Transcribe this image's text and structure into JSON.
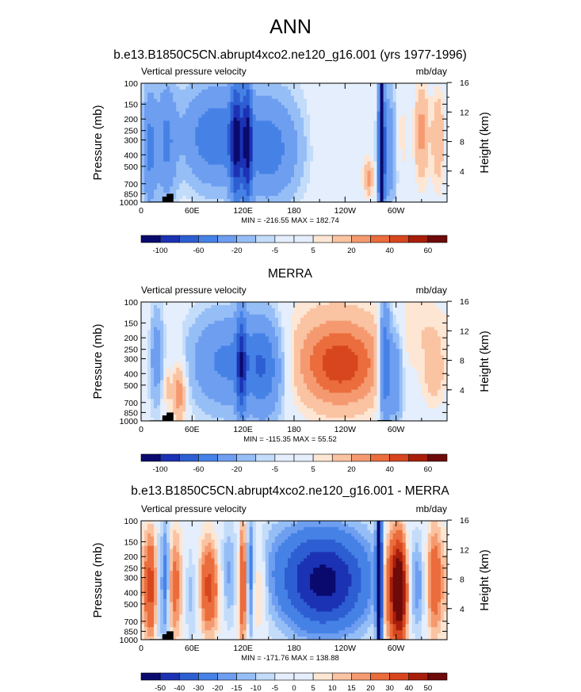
{
  "main_title": "ANN",
  "colors": {
    "palette_13": [
      "#0a0a6e",
      "#1c32b4",
      "#2d5ed2",
      "#4682e6",
      "#6e9ef0",
      "#96bef6",
      "#c3dcfa",
      "#e4eefc",
      "#fde6d4",
      "#fac3a2",
      "#f59a70",
      "#eb6c3c",
      "#d7461e",
      "#a81e0a",
      "#6e0a0a"
    ],
    "land": "#000000"
  },
  "chart_data": [
    {
      "id": "p1",
      "type": "heatmap",
      "title": "b.e13.B1850C5CN.abrupt4xco2.ne120_g16.001 (yrs 1977-1996)",
      "left_label": "Vertical pressure velocity",
      "units": "mb/day",
      "ylabel": "Pressure (mb)",
      "y2label": "Height (km)",
      "yticks": [
        "100",
        "150",
        "200",
        "250",
        "300",
        "400",
        "500",
        "700",
        "850",
        "1000"
      ],
      "y2ticks": [
        "16",
        "12",
        "8",
        "4"
      ],
      "xticks": [
        "0",
        "60E",
        "120E",
        "180",
        "120W",
        "60W"
      ],
      "stats": "MIN = -216.55  MAX = 182.74",
      "colorbar_labels": [
        "-100",
        "-60",
        "-20",
        "-5",
        "5",
        "20",
        "40",
        "60"
      ],
      "colorbar_levels": [
        -120,
        -100,
        -80,
        -60,
        -40,
        -20,
        -10,
        -5,
        0,
        5,
        10,
        20,
        30,
        40,
        50,
        60,
        70
      ]
    },
    {
      "id": "p2",
      "type": "heatmap",
      "title": "MERRA",
      "left_label": "Vertical pressure velocity",
      "units": "mb/day",
      "ylabel": "Pressure (mb)",
      "y2label": "Height (km)",
      "yticks": [
        "100",
        "150",
        "200",
        "250",
        "300",
        "400",
        "500",
        "700",
        "850",
        "1000"
      ],
      "y2ticks": [
        "16",
        "12",
        "8",
        "4"
      ],
      "xticks": [
        "0",
        "60E",
        "120E",
        "180",
        "120W",
        "60W"
      ],
      "stats": "MIN = -115.35  MAX =  55.52",
      "colorbar_labels": [
        "-100",
        "-60",
        "-20",
        "-5",
        "5",
        "20",
        "40",
        "60"
      ],
      "colorbar_levels": [
        -120,
        -100,
        -80,
        -60,
        -40,
        -20,
        -10,
        -5,
        0,
        5,
        10,
        20,
        30,
        40,
        50,
        60,
        70
      ]
    },
    {
      "id": "p3",
      "type": "heatmap",
      "title": "b.e13.B1850C5CN.abrupt4xco2.ne120_g16.001 - MERRA",
      "left_label": "Vertical pressure velocity",
      "units": "mb/day",
      "ylabel": "Pressure (mb)",
      "y2label": "Height (km)",
      "yticks": [
        "100",
        "150",
        "200",
        "250",
        "300",
        "400",
        "500",
        "700",
        "850",
        "1000"
      ],
      "y2ticks": [
        "16",
        "12",
        "8",
        "4"
      ],
      "xticks": [
        "0",
        "60E",
        "120E",
        "180",
        "120W",
        "60W"
      ],
      "stats": "MIN = -171.76  MAX = 138.88",
      "colorbar_labels": [
        "-50",
        "-40",
        "-30",
        "-20",
        "-15",
        "-10",
        "-5",
        "0",
        "5",
        "10",
        "15",
        "20",
        "30",
        "40",
        "50"
      ],
      "colorbar_levels": [
        -60,
        -50,
        -40,
        -30,
        -20,
        -15,
        -10,
        -5,
        0,
        5,
        10,
        15,
        20,
        30,
        40,
        50,
        60
      ]
    }
  ]
}
